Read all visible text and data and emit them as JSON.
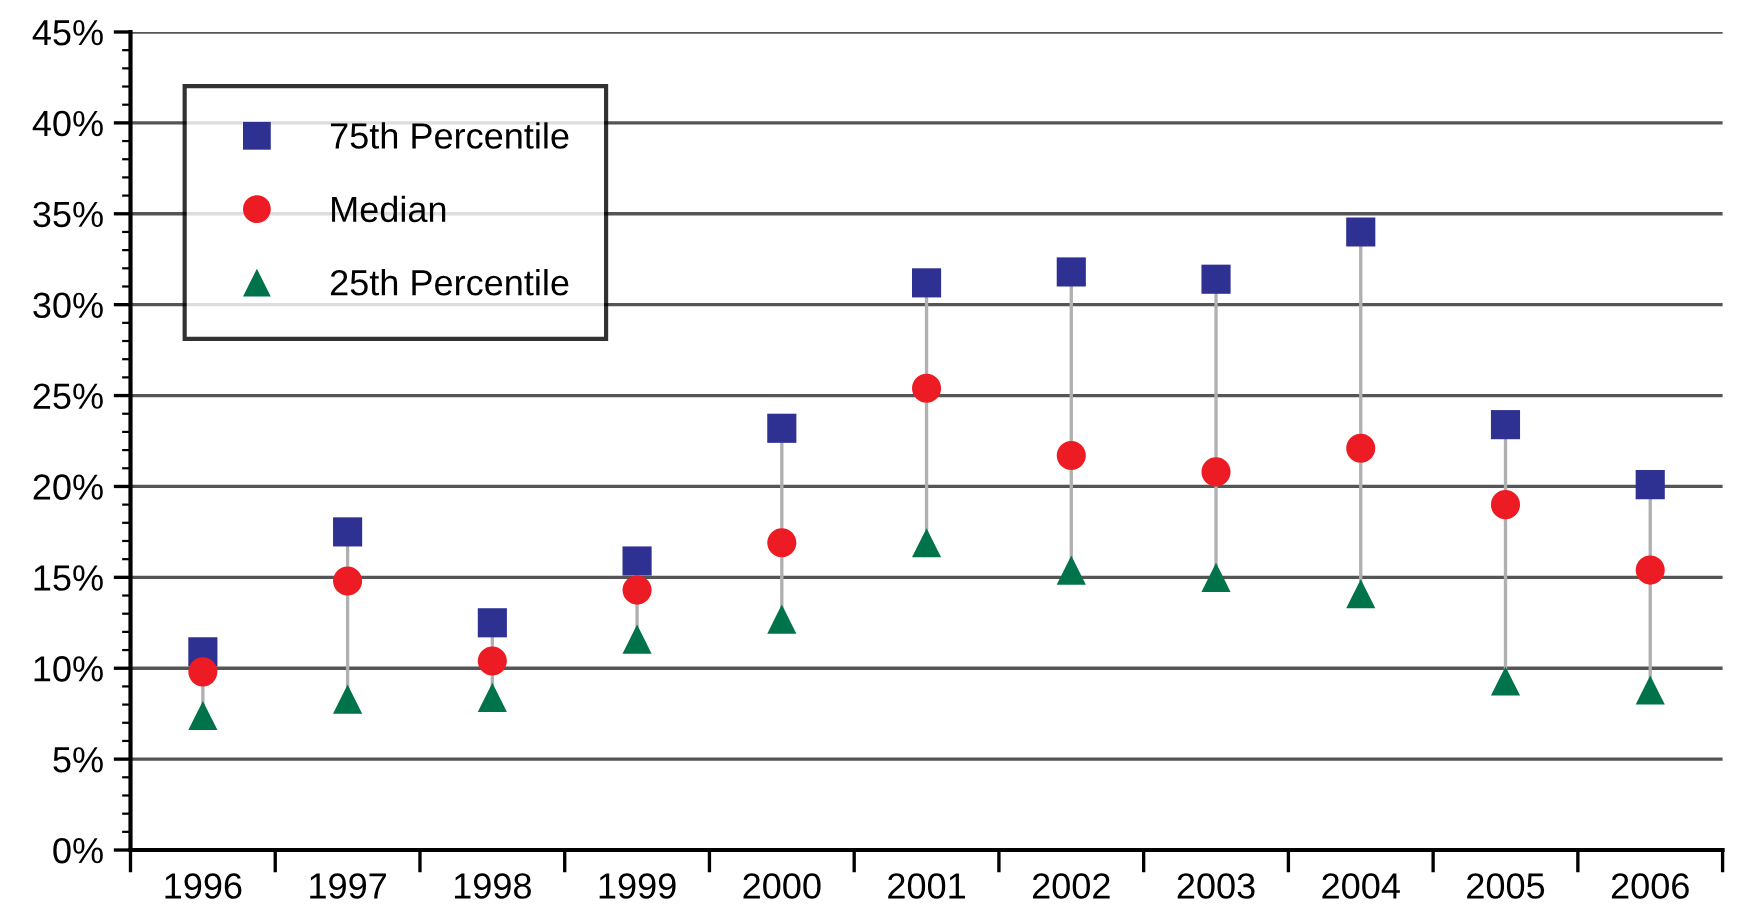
{
  "chart_data": {
    "type": "scatter",
    "categories": [
      "1996",
      "1997",
      "1998",
      "1999",
      "2000",
      "2001",
      "2002",
      "2003",
      "2004",
      "2005",
      "2006"
    ],
    "series": [
      {
        "name": "75th Percentile",
        "color": "#2e3192",
        "marker": "square",
        "values": [
          10.9,
          17.5,
          12.5,
          15.9,
          23.2,
          31.2,
          31.8,
          31.4,
          34.0,
          23.4,
          20.1
        ]
      },
      {
        "name": "Median",
        "color": "#ed1c24",
        "marker": "circle",
        "values": [
          9.8,
          14.8,
          10.4,
          14.3,
          16.9,
          25.4,
          21.7,
          20.8,
          22.1,
          19.0,
          15.4
        ]
      },
      {
        "name": "25th Percentile",
        "color": "#00734a",
        "marker": "triangle",
        "values": [
          7.4,
          8.3,
          8.4,
          11.6,
          12.7,
          16.9,
          15.4,
          15.0,
          14.1,
          9.3,
          8.8
        ]
      }
    ],
    "ylim": [
      0,
      45
    ],
    "yticks": [
      {
        "value": 0,
        "label": "0%"
      },
      {
        "value": 5,
        "label": "5%"
      },
      {
        "value": 10,
        "label": "10%"
      },
      {
        "value": 15,
        "label": "15%"
      },
      {
        "value": 20,
        "label": "20%"
      },
      {
        "value": 25,
        "label": "25%"
      },
      {
        "value": 30,
        "label": "30%"
      },
      {
        "value": 35,
        "label": "35%"
      },
      {
        "value": 40,
        "label": "40%"
      },
      {
        "value": 45,
        "label": "45%"
      }
    ],
    "grid": "y",
    "legend": "top left"
  }
}
